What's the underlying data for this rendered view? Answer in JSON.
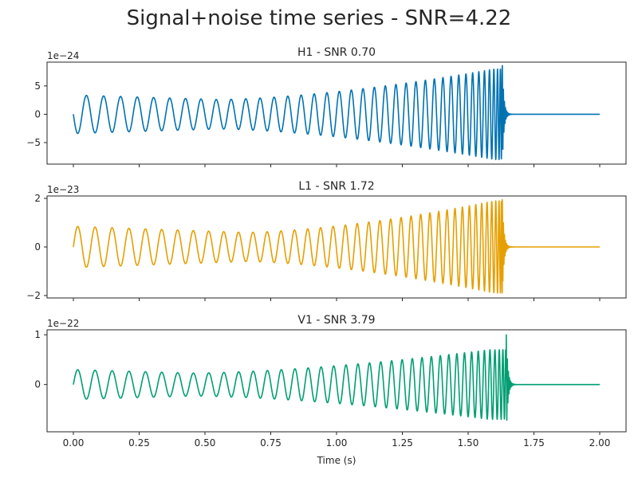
{
  "title": "Signal+noise time series - SNR=4.22",
  "chart_data": [
    {
      "type": "line",
      "title": "H1 - SNR 0.70",
      "series": [
        {
          "color": "#0072b2"
        }
      ],
      "scale_label": "1e−24",
      "yticks": [
        {
          "value": -5,
          "label": "−5"
        },
        {
          "value": 0,
          "label": "0"
        },
        {
          "value": 5,
          "label": "5"
        }
      ],
      "ylim": [
        -8.8,
        9.2
      ],
      "xlim": [
        -0.1,
        2.1
      ],
      "signal": {
        "start_amp": 3.4,
        "min_amp": 2.6,
        "min_t": 0.55,
        "peak_amp": 8.0,
        "peak_t": 1.6,
        "spike": 8.6,
        "merger_t": 1.63,
        "f0": 15,
        "tc": 1.63,
        "start_phase": 1.5707963
      }
    },
    {
      "type": "line",
      "title": "L1 - SNR 1.72",
      "series": [
        {
          "color": "#e69f00"
        }
      ],
      "scale_label": "1e−23",
      "yticks": [
        {
          "value": -2,
          "label": "−2"
        },
        {
          "value": 0,
          "label": "0"
        },
        {
          "value": 2,
          "label": "2"
        }
      ],
      "ylim": [
        -2.1,
        2.1
      ],
      "xlim": [
        -0.1,
        2.1
      ],
      "signal": {
        "start_amp": 0.85,
        "min_amp": 0.6,
        "min_t": 0.65,
        "peak_amp": 1.9,
        "peak_t": 1.6,
        "spike": 1.95,
        "merger_t": 1.63,
        "f0": 15,
        "tc": 1.63,
        "start_phase": -1.5707963
      }
    },
    {
      "type": "line",
      "title": "V1 - SNR 3.79",
      "series": [
        {
          "color": "#009e73"
        }
      ],
      "scale_label": "1e−22",
      "yticks": [
        {
          "value": 0,
          "label": "0"
        },
        {
          "value": 1,
          "label": "1"
        }
      ],
      "ylim": [
        -0.95,
        1.1
      ],
      "xlim": [
        -0.1,
        2.1
      ],
      "signal": {
        "start_amp": 0.3,
        "min_amp": 0.23,
        "min_t": 0.45,
        "peak_amp": 0.7,
        "peak_t": 1.58,
        "spike": 1.0,
        "merger_t": 1.645,
        "f0": 15,
        "tc": 1.65,
        "start_phase": -1.5707963
      }
    }
  ],
  "xticks": [
    {
      "value": 0.0,
      "label": "0.00"
    },
    {
      "value": 0.25,
      "label": "0.25"
    },
    {
      "value": 0.5,
      "label": "0.50"
    },
    {
      "value": 0.75,
      "label": "0.75"
    },
    {
      "value": 1.0,
      "label": "1.00"
    },
    {
      "value": 1.25,
      "label": "1.25"
    },
    {
      "value": 1.5,
      "label": "1.50"
    },
    {
      "value": 1.75,
      "label": "1.75"
    },
    {
      "value": 2.0,
      "label": "2.00"
    }
  ],
  "xlabel": "Time (s)",
  "x_range": [
    0,
    2.0
  ]
}
